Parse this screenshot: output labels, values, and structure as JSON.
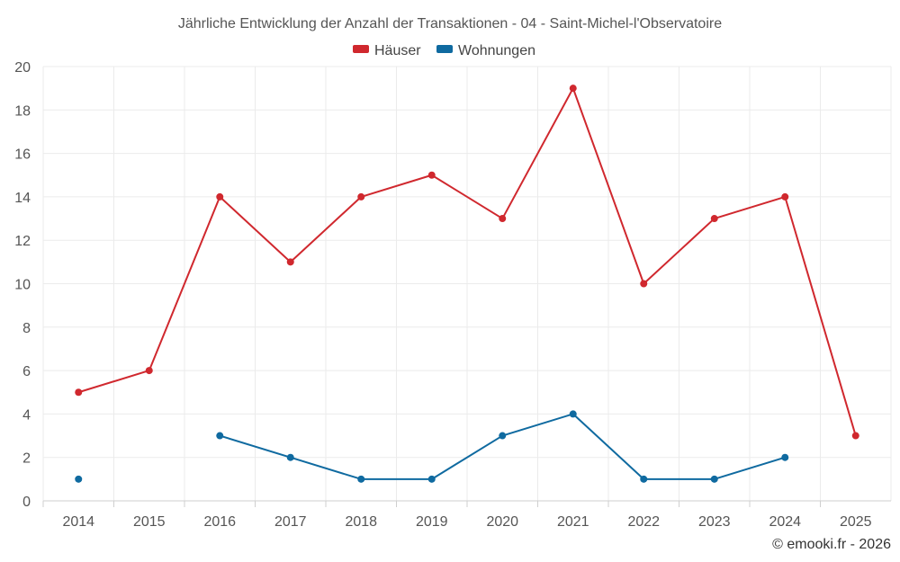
{
  "chart_data": {
    "type": "line",
    "title": "Jährliche Entwicklung der Anzahl der Transaktionen - 04 - Saint-Michel-l'Observatoire",
    "categories": [
      "2014",
      "2015",
      "2016",
      "2017",
      "2018",
      "2019",
      "2020",
      "2021",
      "2022",
      "2023",
      "2024",
      "2025"
    ],
    "ylim": [
      0,
      20
    ],
    "yticks": [
      0,
      2,
      4,
      6,
      8,
      10,
      12,
      14,
      16,
      18,
      20
    ],
    "grid": true,
    "legend_position": "top",
    "series": [
      {
        "name": "Häuser",
        "color": "#d0282e",
        "values": [
          5,
          6,
          14,
          11,
          14,
          15,
          13,
          19,
          10,
          13,
          14,
          3
        ]
      },
      {
        "name": "Wohnungen",
        "color": "#0f6aa0",
        "values": [
          1,
          null,
          3,
          2,
          1,
          1,
          3,
          4,
          1,
          1,
          2,
          null
        ]
      }
    ],
    "credit": "© emooki.fr - 2026"
  }
}
